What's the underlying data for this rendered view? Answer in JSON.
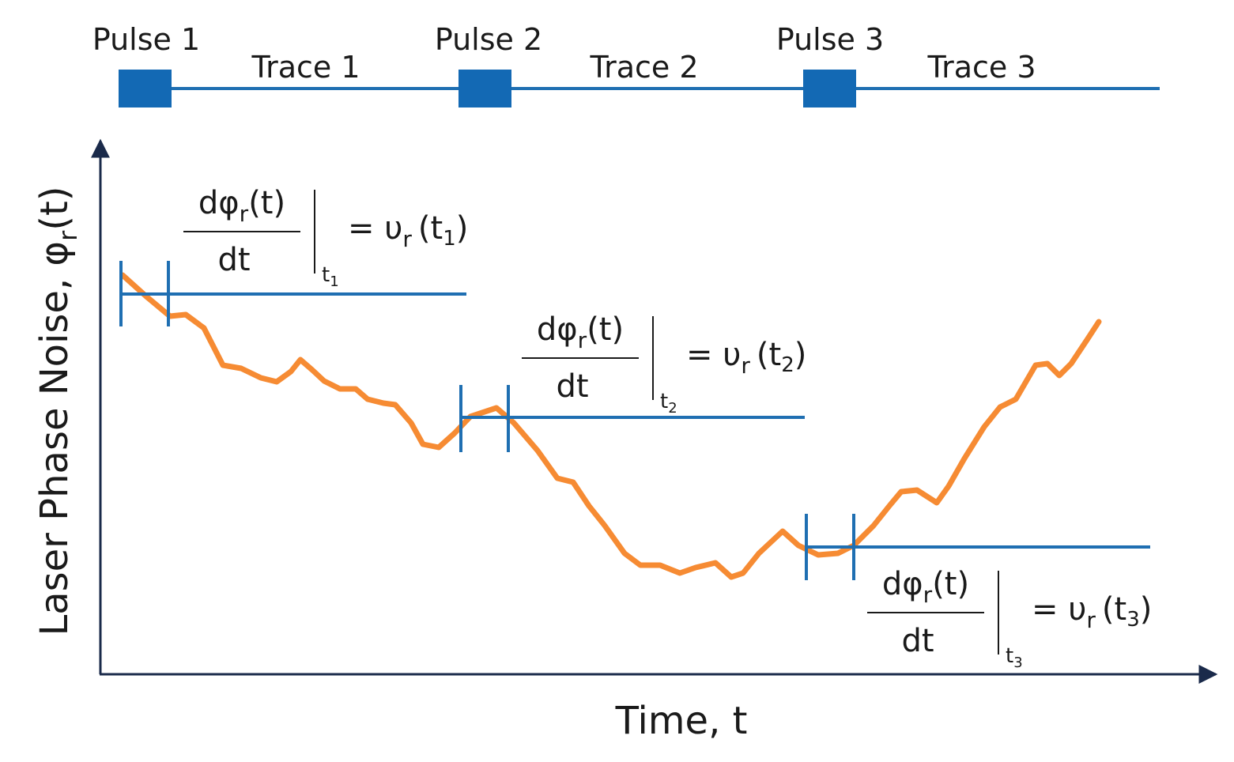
{
  "pulses": [
    {
      "label": "Pulse 1",
      "trace": "Trace 1"
    },
    {
      "label": "Pulse 2",
      "trace": "Trace 2"
    },
    {
      "label": "Pulse 3",
      "trace": "Trace 3"
    }
  ],
  "axes": {
    "x_label": "Time, t",
    "y_label": {
      "base": "Laser Phase Noise, φ",
      "sub": "r",
      "tail": "(t)"
    }
  },
  "equations": [
    {
      "numerator": {
        "base": "dφ",
        "sub": "r",
        "tail": "(t)"
      },
      "denominator": "dt",
      "at": {
        "base": "t",
        "sub": "1"
      },
      "result": {
        "base": "= υ",
        "sub": "r",
        "open": "(t",
        "arg": "1",
        "close": ")"
      }
    },
    {
      "numerator": {
        "base": "dφ",
        "sub": "r",
        "tail": "(t)"
      },
      "denominator": "dt",
      "at": {
        "base": "t",
        "sub": "2"
      },
      "result": {
        "base": "= υ",
        "sub": "r",
        "open": "(t",
        "arg": "2",
        "close": ")"
      }
    },
    {
      "numerator": {
        "base": "dφ",
        "sub": "r",
        "tail": "(t)"
      },
      "denominator": "dt",
      "at": {
        "base": "t",
        "sub": "3"
      },
      "result": {
        "base": "= υ",
        "sub": "r",
        "open": "(t",
        "arg": "3",
        "close": ")"
      }
    }
  ]
}
